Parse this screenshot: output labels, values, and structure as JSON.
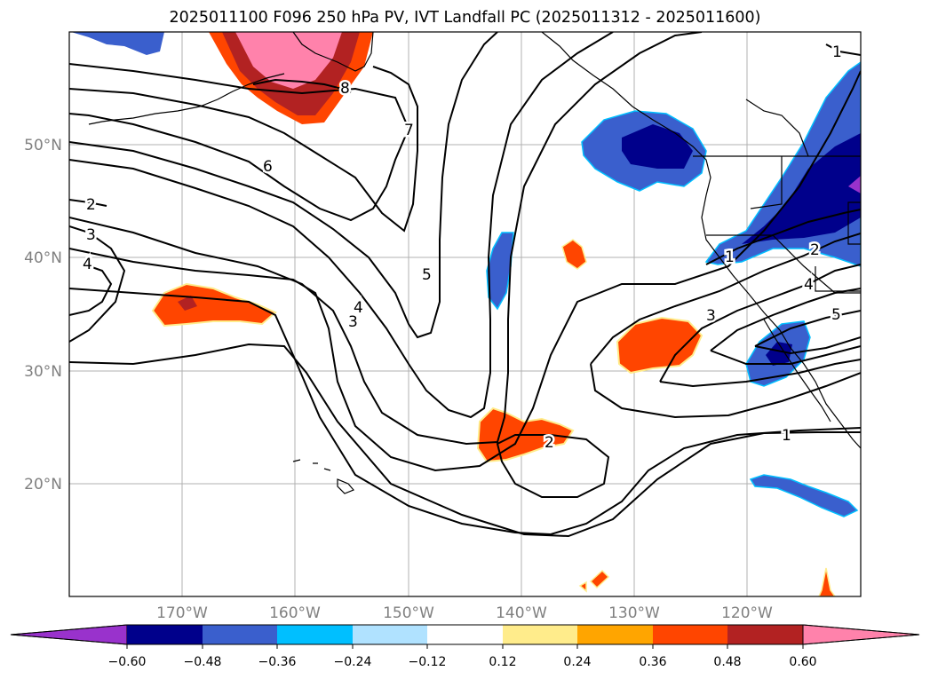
{
  "title": "2025011100 F096 250 hPa PV, IVT Landfall PC (2025011312 - 2025011600)",
  "map": {
    "lat_labels": [
      "50°N",
      "40°N",
      "30°N",
      "20°N"
    ],
    "lon_labels": [
      "170°W",
      "160°W",
      "150°W",
      "140°W",
      "130°W",
      "120°W"
    ],
    "contour_labels": [
      "2",
      "3",
      "4",
      "6",
      "7",
      "8",
      "5",
      "4",
      "3",
      "2",
      "1",
      "3",
      "2",
      "1",
      "4",
      "5",
      "1"
    ],
    "colors": {
      "grid": "#b0b0b0",
      "tick_label": "#808080",
      "coast": "#000000",
      "contour": "#000000"
    }
  },
  "colorbar": {
    "ticks": [
      "−0.60",
      "−0.48",
      "−0.36",
      "−0.24",
      "−0.12",
      "0.12",
      "0.24",
      "0.36",
      "0.48",
      "0.60"
    ],
    "colors": [
      "#9932cc",
      "#00008b",
      "#3a5fcd",
      "#00bfff",
      "#b0e2ff",
      "#ffffff",
      "#ffec8b",
      "#ffa500",
      "#ff4500",
      "#b22222",
      "#ff82ab"
    ]
  }
}
